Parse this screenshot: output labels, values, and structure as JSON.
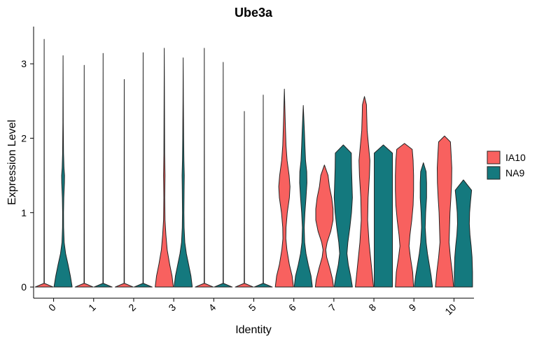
{
  "chart_data": {
    "type": "violin",
    "title": "Ube3a",
    "xlabel": "Identity",
    "ylabel": "Expression Level",
    "ylim": [
      -0.15,
      3.5
    ],
    "y_ticks": [
      "0",
      "1",
      "2",
      "3"
    ],
    "grid": false,
    "legend_position": "right",
    "categories": [
      "0",
      "1",
      "2",
      "3",
      "4",
      "5",
      "6",
      "7",
      "8",
      "9",
      "10"
    ],
    "series": [
      {
        "name": "IA10",
        "color": "#F8615F",
        "max_values": [
          3.33,
          2.98,
          2.79,
          3.21,
          3.21,
          2.36,
          2.66,
          1.64,
          2.56,
          1.93,
          2.03
        ],
        "shapes": [
          [
            [
              0,
              1
            ],
            [
              0.05,
              0.02
            ],
            [
              3.33,
              0
            ]
          ],
          [
            [
              0,
              1
            ],
            [
              0.05,
              0.02
            ],
            [
              2.98,
              0
            ]
          ],
          [
            [
              0,
              1
            ],
            [
              0.05,
              0.02
            ],
            [
              2.79,
              0
            ]
          ],
          [
            [
              0,
              1
            ],
            [
              0.15,
              0.85
            ],
            [
              0.3,
              0.6
            ],
            [
              0.5,
              0.32
            ],
            [
              0.7,
              0.18
            ],
            [
              0.9,
              0.08
            ],
            [
              1.2,
              0.05
            ],
            [
              1.5,
              0.08
            ],
            [
              1.8,
              0.04
            ],
            [
              2.5,
              0.02
            ],
            [
              3.21,
              0
            ]
          ],
          [
            [
              0,
              1
            ],
            [
              0.05,
              0.02
            ],
            [
              3.21,
              0
            ]
          ],
          [
            [
              0,
              1
            ],
            [
              0.05,
              0.02
            ],
            [
              2.36,
              0
            ]
          ],
          [
            [
              0,
              1
            ],
            [
              0.15,
              0.85
            ],
            [
              0.3,
              0.55
            ],
            [
              0.5,
              0.28
            ],
            [
              0.65,
              0.16
            ],
            [
              0.8,
              0.18
            ],
            [
              1.0,
              0.32
            ],
            [
              1.2,
              0.55
            ],
            [
              1.35,
              0.62
            ],
            [
              1.5,
              0.52
            ],
            [
              1.7,
              0.3
            ],
            [
              1.9,
              0.18
            ],
            [
              2.2,
              0.1
            ],
            [
              2.66,
              0
            ]
          ],
          [
            [
              0,
              1
            ],
            [
              0.1,
              0.9
            ],
            [
              0.25,
              0.6
            ],
            [
              0.4,
              0.25
            ],
            [
              0.5,
              0.15
            ],
            [
              0.6,
              0.3
            ],
            [
              0.75,
              0.7
            ],
            [
              0.9,
              0.95
            ],
            [
              1.05,
              0.95
            ],
            [
              1.2,
              0.8
            ],
            [
              1.35,
              0.55
            ],
            [
              1.5,
              0.4
            ],
            [
              1.64,
              0
            ]
          ],
          [
            [
              0,
              1
            ],
            [
              0.3,
              0.75
            ],
            [
              0.6,
              0.5
            ],
            [
              0.9,
              0.35
            ],
            [
              1.2,
              0.4
            ],
            [
              1.5,
              0.55
            ],
            [
              1.7,
              0.6
            ],
            [
              1.9,
              0.45
            ],
            [
              2.1,
              0.3
            ],
            [
              2.3,
              0.25
            ],
            [
              2.45,
              0.22
            ],
            [
              2.56,
              0
            ]
          ],
          [
            [
              0,
              1
            ],
            [
              0.2,
              0.9
            ],
            [
              0.4,
              0.65
            ],
            [
              0.55,
              0.5
            ],
            [
              0.7,
              0.6
            ],
            [
              0.9,
              0.8
            ],
            [
              1.1,
              0.95
            ],
            [
              1.3,
              1
            ],
            [
              1.5,
              1
            ],
            [
              1.7,
              0.95
            ],
            [
              1.85,
              0.85
            ],
            [
              1.93,
              0
            ]
          ],
          [
            [
              0,
              1
            ],
            [
              0.2,
              0.85
            ],
            [
              0.4,
              0.65
            ],
            [
              0.6,
              0.5
            ],
            [
              0.8,
              0.55
            ],
            [
              1.0,
              0.6
            ],
            [
              1.2,
              0.7
            ],
            [
              1.4,
              0.78
            ],
            [
              1.6,
              0.8
            ],
            [
              1.8,
              0.72
            ],
            [
              1.95,
              0.65
            ],
            [
              2.03,
              0
            ]
          ]
        ]
      },
      {
        "name": "NA9",
        "color": "#14797E",
        "max_values": [
          3.11,
          3.14,
          3.15,
          3.08,
          3.02,
          2.58,
          2.44,
          1.91,
          1.91,
          1.67,
          1.44
        ],
        "shapes": [
          [
            [
              0,
              1
            ],
            [
              0.15,
              0.8
            ],
            [
              0.3,
              0.55
            ],
            [
              0.45,
              0.28
            ],
            [
              0.6,
              0.12
            ],
            [
              0.8,
              0.06
            ],
            [
              1.0,
              0.05
            ],
            [
              1.2,
              0.08
            ],
            [
              1.4,
              0.15
            ],
            [
              1.5,
              0.16
            ],
            [
              1.6,
              0.1
            ],
            [
              1.8,
              0.05
            ],
            [
              2.2,
              0.02
            ],
            [
              3.11,
              0
            ]
          ],
          [
            [
              0,
              1
            ],
            [
              0.05,
              0.02
            ],
            [
              3.14,
              0
            ]
          ],
          [
            [
              0,
              1
            ],
            [
              0.05,
              0.02
            ],
            [
              3.15,
              0
            ]
          ],
          [
            [
              0,
              1
            ],
            [
              0.15,
              0.85
            ],
            [
              0.3,
              0.6
            ],
            [
              0.45,
              0.35
            ],
            [
              0.6,
              0.18
            ],
            [
              0.8,
              0.1
            ],
            [
              1.0,
              0.08
            ],
            [
              1.3,
              0.1
            ],
            [
              1.5,
              0.12
            ],
            [
              1.7,
              0.08
            ],
            [
              2.0,
              0.05
            ],
            [
              2.5,
              0.02
            ],
            [
              3.08,
              0
            ]
          ],
          [
            [
              0,
              1
            ],
            [
              0.05,
              0.02
            ],
            [
              3.02,
              0
            ]
          ],
          [
            [
              0,
              1
            ],
            [
              0.05,
              0.02
            ],
            [
              2.58,
              0
            ]
          ],
          [
            [
              0,
              1
            ],
            [
              0.15,
              0.85
            ],
            [
              0.3,
              0.55
            ],
            [
              0.45,
              0.3
            ],
            [
              0.6,
              0.15
            ],
            [
              0.8,
              0.1
            ],
            [
              1.0,
              0.18
            ],
            [
              1.2,
              0.3
            ],
            [
              1.4,
              0.4
            ],
            [
              1.55,
              0.38
            ],
            [
              1.7,
              0.25
            ],
            [
              1.9,
              0.18
            ],
            [
              2.1,
              0.12
            ],
            [
              2.44,
              0
            ]
          ],
          [
            [
              0,
              1
            ],
            [
              0.15,
              0.8
            ],
            [
              0.3,
              0.55
            ],
            [
              0.45,
              0.4
            ],
            [
              0.6,
              0.5
            ],
            [
              0.8,
              0.72
            ],
            [
              1.0,
              0.9
            ],
            [
              1.2,
              1
            ],
            [
              1.4,
              0.95
            ],
            [
              1.6,
              0.9
            ],
            [
              1.8,
              0.88
            ],
            [
              1.91,
              0
            ]
          ],
          [
            [
              0,
              1
            ],
            [
              0.3,
              1
            ],
            [
              0.6,
              1
            ],
            [
              0.9,
              1
            ],
            [
              1.2,
              1
            ],
            [
              1.5,
              1
            ],
            [
              1.8,
              1
            ],
            [
              1.91,
              0
            ]
          ],
          [
            [
              0,
              1
            ],
            [
              0.15,
              0.85
            ],
            [
              0.3,
              0.65
            ],
            [
              0.45,
              0.45
            ],
            [
              0.6,
              0.3
            ],
            [
              0.8,
              0.2
            ],
            [
              1.0,
              0.25
            ],
            [
              1.2,
              0.35
            ],
            [
              1.4,
              0.35
            ],
            [
              1.55,
              0.3
            ],
            [
              1.67,
              0
            ]
          ],
          [
            [
              0,
              1
            ],
            [
              0.2,
              1
            ],
            [
              0.4,
              0.95
            ],
            [
              0.55,
              0.85
            ],
            [
              0.7,
              0.72
            ],
            [
              0.85,
              0.65
            ],
            [
              1.0,
              0.68
            ],
            [
              1.15,
              0.78
            ],
            [
              1.3,
              0.9
            ],
            [
              1.44,
              0
            ]
          ]
        ]
      }
    ]
  }
}
